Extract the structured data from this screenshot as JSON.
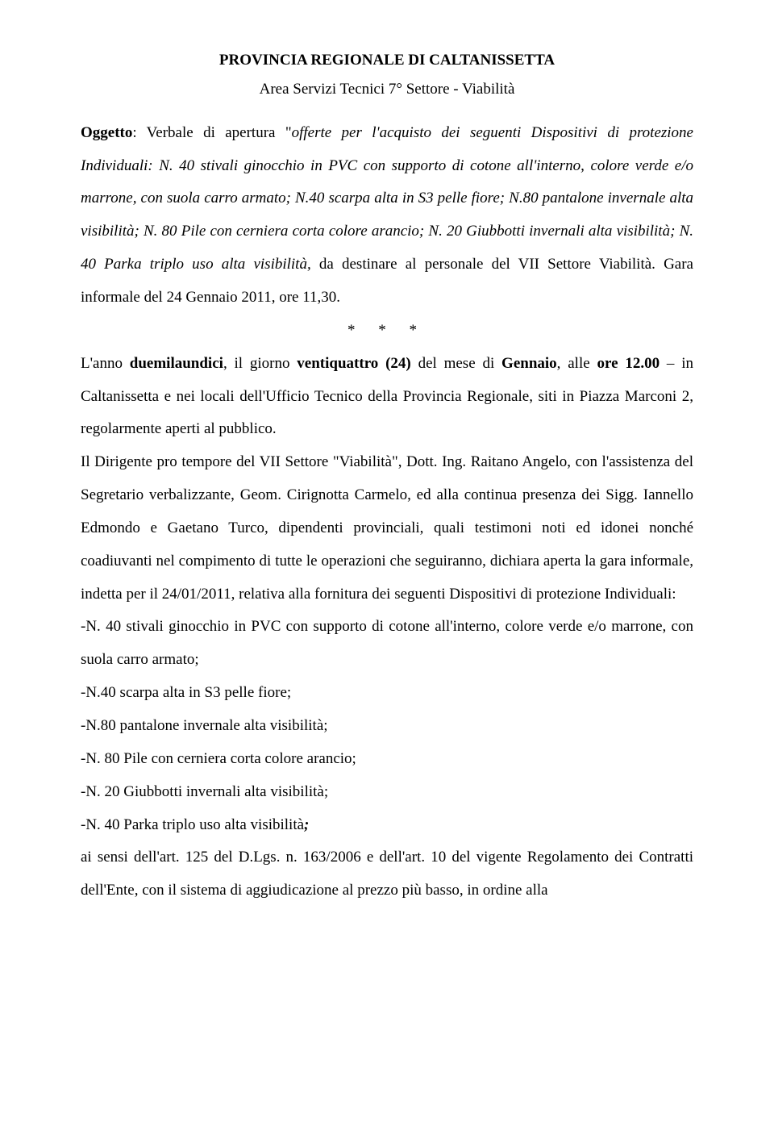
{
  "title": "PROVINCIA REGIONALE DI CALTANISSETTA",
  "subtitle": "Area Servizi Tecnici 7° Settore - Viabilità",
  "p1": {
    "t1": "Oggetto",
    "t2": ": Verbale di apertura \"",
    "t3": "offerte per l'acquisto dei seguenti Dispositivi di protezione Individuali: N. 40 stivali ginocchio in PVC con supporto di cotone all'interno, colore verde e/o marrone, con suola carro armato; N.40 scarpa alta in S3 pelle fiore; N.80 pantalone invernale alta visibilità; N. 80 Pile con cerniera corta colore arancio; N. 20 Giubbotti invernali alta visibilità; N. 40 Parka triplo uso alta visibilità,",
    "t4": " da destinare al personale del VII Settore Viabilità. Gara informale del 24 Gennaio 2011, ore 11,30."
  },
  "stars": "*   *   *",
  "p2": {
    "t1": "L'anno ",
    "t2": "duemilaundici",
    "t3": ", il giorno ",
    "t4": "ventiquattro (24)",
    "t5": " del mese di ",
    "t6": "Gennaio",
    "t7": ", alle ",
    "t8": "ore 12.00",
    "t9": " – in Caltanissetta e nei locali dell'Ufficio Tecnico della Provincia Regionale, siti in Piazza Marconi  2, regolarmente aperti al pubblico."
  },
  "p3": "Il Dirigente pro tempore del VII Settore \"Viabilità\",  Dott. Ing. Raitano Angelo, con l'assistenza del Segretario verbalizzante, Geom. Cirignotta Carmelo, ed alla continua presenza dei Sigg. Iannello Edmondo e Gaetano Turco, dipendenti provinciali, quali testimoni noti ed idonei nonché coadiuvanti nel compimento di tutte le operazioni che seguiranno, dichiara aperta la gara informale, indetta per il 24/01/2011, relativa alla fornitura dei seguenti Dispositivi di protezione Individuali:",
  "items": {
    "i1": "-N. 40 stivali ginocchio in PVC con supporto di cotone all'interno, colore verde e/o marrone, con suola carro armato;",
    "i2": "-N.40 scarpa alta in S3 pelle fiore;",
    "i3": "-N.80 pantalone invernale alta visibilità;",
    "i4": "-N. 80 Pile con cerniera corta colore arancio;",
    "i5": "-N. 20 Giubbotti invernali alta visibilità;",
    "i6a": "-N. 40 Parka triplo uso alta visibilità",
    "i6b": ";"
  },
  "p4": "ai sensi dell'art. 125 del D.Lgs. n. 163/2006 e dell'art. 10 del vigente Regolamento dei Contratti dell'Ente, con il sistema di aggiudicazione al prezzo più basso, in ordine alla"
}
